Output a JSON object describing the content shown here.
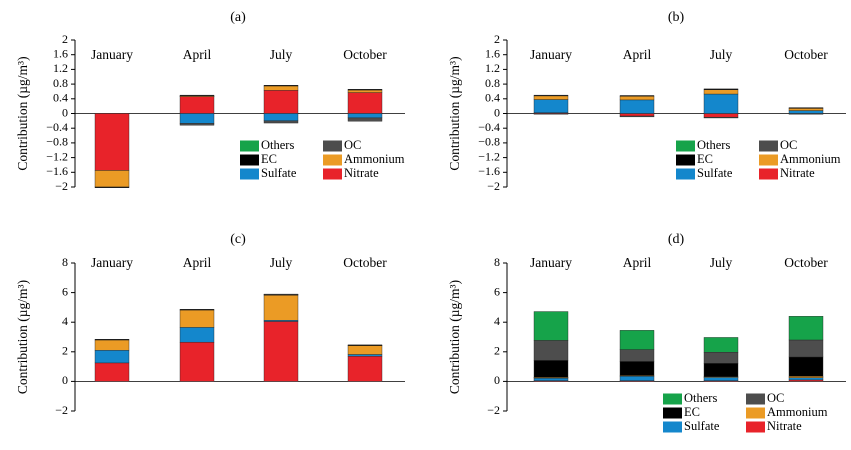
{
  "colors": {
    "Others": "#16a34a",
    "OC": "#4d4d4d",
    "EC": "#000000",
    "Ammonium": "#eb9b25",
    "Sulfate": "#1487cc",
    "Nitrate": "#e8232a"
  },
  "legend_items": [
    "Others",
    "OC",
    "EC",
    "Ammonium",
    "Sulfate",
    "Nitrate"
  ],
  "ylabel": "Contribution (µg/m³)",
  "chart_data": [
    {
      "id": "a",
      "label": "(a)",
      "type": "bar",
      "stacked": true,
      "categories": [
        "January",
        "April",
        "July",
        "October"
      ],
      "ylim": [
        -2,
        2
      ],
      "yticks": [
        "2",
        "1.6",
        "1.2",
        "0.8",
        "0.4",
        "0",
        "−0.4",
        "−0.8",
        "−1.2",
        "−1.6",
        "−2"
      ],
      "ytick_values": [
        2,
        1.6,
        1.2,
        0.8,
        0.4,
        0,
        -0.4,
        -0.8,
        -1.2,
        -1.6,
        -2
      ],
      "ylabel": "Contribution (µg/m³)",
      "show_legend": true,
      "series": [
        {
          "name": "Nitrate",
          "values": [
            -1.55,
            0.47,
            0.63,
            0.57
          ]
        },
        {
          "name": "Sulfate",
          "values": [
            0,
            -0.27,
            -0.2,
            -0.12
          ]
        },
        {
          "name": "Ammonium",
          "values": [
            -0.45,
            0.01,
            0.12,
            0.07
          ]
        },
        {
          "name": "EC",
          "values": [
            -0.02,
            0.02,
            0.02,
            0.02
          ]
        },
        {
          "name": "OC",
          "values": [
            0,
            -0.05,
            -0.06,
            -0.09
          ]
        },
        {
          "name": "Others",
          "values": [
            0,
            0,
            0,
            0
          ]
        }
      ]
    },
    {
      "id": "b",
      "label": "(b)",
      "type": "bar",
      "stacked": true,
      "categories": [
        "January",
        "April",
        "July",
        "October"
      ],
      "ylim": [
        -2,
        2
      ],
      "yticks": [
        "2",
        "1.6",
        "1.2",
        "0.8",
        "0.4",
        "0",
        "−0.4",
        "−0.8",
        "−1.2",
        "−1.6",
        "−2"
      ],
      "ytick_values": [
        2,
        1.6,
        1.2,
        0.8,
        0.4,
        0,
        -0.4,
        -0.8,
        -1.2,
        -1.6,
        -2
      ],
      "ylabel": "Contribution (µg/m³)",
      "show_legend": true,
      "series": [
        {
          "name": "Nitrate",
          "values": [
            0.02,
            -0.07,
            -0.1,
            0
          ]
        },
        {
          "name": "Sulfate",
          "values": [
            0.36,
            0.37,
            0.53,
            0.08
          ]
        },
        {
          "name": "Ammonium",
          "values": [
            0.1,
            0.1,
            0.12,
            0.07
          ]
        },
        {
          "name": "EC",
          "values": [
            0.02,
            0.02,
            0.02,
            0.01
          ]
        },
        {
          "name": "OC",
          "values": [
            -0.02,
            -0.02,
            -0.01,
            -0.01
          ]
        },
        {
          "name": "Others",
          "values": [
            0,
            0,
            0,
            0
          ]
        }
      ]
    },
    {
      "id": "c",
      "label": "(c)",
      "type": "bar",
      "stacked": true,
      "categories": [
        "January",
        "April",
        "July",
        "October"
      ],
      "ylim": [
        -2,
        8
      ],
      "yticks": [
        "8",
        "6",
        "4",
        "2",
        "0",
        "−2"
      ],
      "ytick_values": [
        8,
        6,
        4,
        2,
        0,
        -2
      ],
      "ylabel": "Contribution (µg/m³)",
      "show_legend": false,
      "series": [
        {
          "name": "Nitrate",
          "values": [
            1.25,
            2.65,
            4.05,
            1.7
          ]
        },
        {
          "name": "Sulfate",
          "values": [
            0.85,
            1.0,
            0.08,
            0.12
          ]
        },
        {
          "name": "Ammonium",
          "values": [
            0.7,
            1.2,
            1.7,
            0.62
          ]
        },
        {
          "name": "EC",
          "values": [
            0.05,
            0.02,
            0.05,
            0.03
          ]
        },
        {
          "name": "OC",
          "values": [
            0,
            0,
            0.02,
            0
          ]
        },
        {
          "name": "Others",
          "values": [
            0,
            0,
            0,
            0
          ]
        }
      ]
    },
    {
      "id": "d",
      "label": "(d)",
      "type": "bar",
      "stacked": true,
      "categories": [
        "January",
        "April",
        "July",
        "October"
      ],
      "ylim": [
        -2,
        8
      ],
      "yticks": [
        "8",
        "6",
        "4",
        "2",
        "0",
        "−2"
      ],
      "ytick_values": [
        8,
        6,
        4,
        2,
        0,
        -2
      ],
      "ylabel": "Contribution (µg/m³)",
      "show_legend": true,
      "series": [
        {
          "name": "Nitrate",
          "values": [
            0.05,
            0.05,
            0.05,
            0.1
          ]
        },
        {
          "name": "Sulfate",
          "values": [
            0.2,
            0.3,
            0.25,
            0.15
          ]
        },
        {
          "name": "Ammonium",
          "values": [
            0.02,
            0.05,
            0.02,
            0.1
          ]
        },
        {
          "name": "EC",
          "values": [
            1.15,
            0.95,
            0.9,
            1.3
          ]
        },
        {
          "name": "OC",
          "values": [
            1.35,
            0.8,
            0.75,
            1.15
          ]
        },
        {
          "name": "Others",
          "values": [
            1.95,
            1.3,
            1.0,
            1.6
          ]
        }
      ]
    }
  ]
}
